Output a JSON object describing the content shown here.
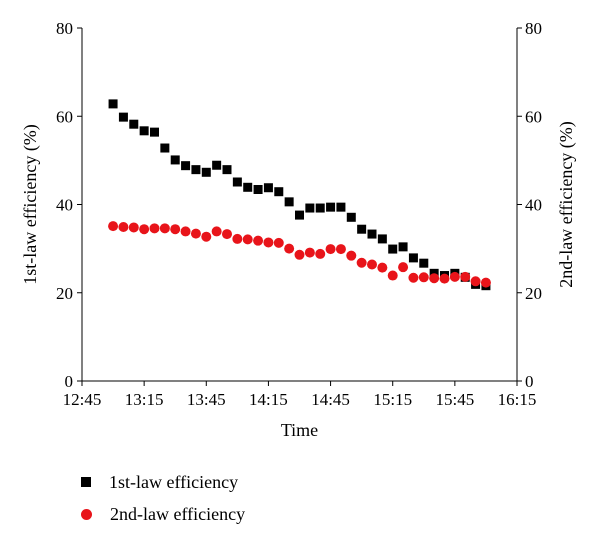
{
  "chart_data": {
    "type": "scatter",
    "xlabel": "Time",
    "ylabel_left": "1st-law efficiency (%)",
    "ylabel_right": "2nd-law efficiency (%)",
    "x_ticks": [
      "12:45",
      "13:15",
      "13:45",
      "14:15",
      "14:45",
      "15:15",
      "15:45",
      "16:15"
    ],
    "xlim": [
      "12:45",
      "16:15"
    ],
    "y_ticks": [
      0,
      20,
      40,
      60,
      80
    ],
    "ylim": [
      0,
      80
    ],
    "grid": false,
    "legend_position": "bottom-left",
    "series": [
      {
        "name": "1st-law efficiency",
        "marker": "square",
        "color": "#000000",
        "points": [
          [
            "13:00",
            62.8
          ],
          [
            "13:05",
            59.8
          ],
          [
            "13:10",
            58.2
          ],
          [
            "13:15",
            56.7
          ],
          [
            "13:20",
            56.4
          ],
          [
            "13:25",
            52.8
          ],
          [
            "13:30",
            50.1
          ],
          [
            "13:35",
            48.8
          ],
          [
            "13:40",
            47.9
          ],
          [
            "13:45",
            47.3
          ],
          [
            "13:50",
            48.9
          ],
          [
            "13:55",
            47.9
          ],
          [
            "14:00",
            45.1
          ],
          [
            "14:05",
            43.9
          ],
          [
            "14:10",
            43.4
          ],
          [
            "14:15",
            43.8
          ],
          [
            "14:20",
            42.9
          ],
          [
            "14:25",
            40.6
          ],
          [
            "14:30",
            37.6
          ],
          [
            "14:35",
            39.2
          ],
          [
            "14:40",
            39.2
          ],
          [
            "14:45",
            39.4
          ],
          [
            "14:50",
            39.4
          ],
          [
            "14:55",
            37.1
          ],
          [
            "15:00",
            34.4
          ],
          [
            "15:05",
            33.3
          ],
          [
            "15:10",
            32.2
          ],
          [
            "15:15",
            29.9
          ],
          [
            "15:20",
            30.4
          ],
          [
            "15:25",
            27.9
          ],
          [
            "15:30",
            26.7
          ],
          [
            "15:35",
            24.4
          ],
          [
            "15:40",
            23.9
          ],
          [
            "15:45",
            24.4
          ],
          [
            "15:50",
            23.5
          ],
          [
            "15:55",
            21.9
          ],
          [
            "16:00",
            21.6
          ]
        ]
      },
      {
        "name": "2nd-law efficiency",
        "marker": "circle",
        "color": "#e8141a",
        "points": [
          [
            "13:00",
            35.1
          ],
          [
            "13:05",
            34.9
          ],
          [
            "13:10",
            34.8
          ],
          [
            "13:15",
            34.4
          ],
          [
            "13:20",
            34.6
          ],
          [
            "13:25",
            34.6
          ],
          [
            "13:30",
            34.4
          ],
          [
            "13:35",
            33.9
          ],
          [
            "13:40",
            33.4
          ],
          [
            "13:45",
            32.7
          ],
          [
            "13:50",
            33.9
          ],
          [
            "13:55",
            33.3
          ],
          [
            "14:00",
            32.2
          ],
          [
            "14:05",
            32.1
          ],
          [
            "14:10",
            31.8
          ],
          [
            "14:15",
            31.4
          ],
          [
            "14:20",
            31.3
          ],
          [
            "14:25",
            30.0
          ],
          [
            "14:30",
            28.6
          ],
          [
            "14:35",
            29.1
          ],
          [
            "14:40",
            28.8
          ],
          [
            "14:45",
            29.9
          ],
          [
            "14:50",
            29.9
          ],
          [
            "14:55",
            28.4
          ],
          [
            "15:00",
            26.8
          ],
          [
            "15:05",
            26.4
          ],
          [
            "15:10",
            25.7
          ],
          [
            "15:15",
            23.9
          ],
          [
            "15:20",
            25.8
          ],
          [
            "15:25",
            23.4
          ],
          [
            "15:30",
            23.5
          ],
          [
            "15:35",
            23.3
          ],
          [
            "15:40",
            23.2
          ],
          [
            "15:45",
            23.6
          ],
          [
            "15:50",
            23.6
          ],
          [
            "15:55",
            22.6
          ],
          [
            "16:00",
            22.3
          ]
        ]
      }
    ]
  }
}
